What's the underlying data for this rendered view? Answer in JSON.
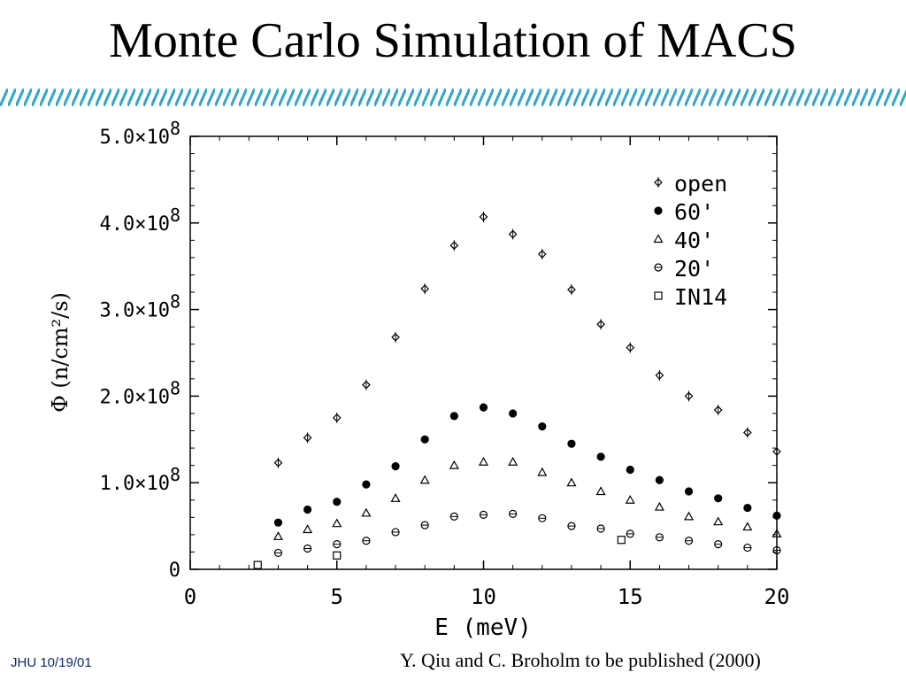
{
  "slide": {
    "title": "Monte Carlo Simulation of MACS",
    "footer_left": "JHU 10/19/01",
    "citation": "Y. Qiu and C. Broholm to be published (2000)"
  },
  "colors": {
    "stripe": "#3aa6c8",
    "footer_text": "#0a2a66"
  },
  "chart_data": {
    "type": "scatter",
    "xlabel": "E (meV)",
    "ylabel": "Φ (n/cm²/s)",
    "xlim": [
      0,
      20
    ],
    "ylim": [
      0,
      500000000
    ],
    "x_ticks": [
      {
        "value": 0,
        "label": "0"
      },
      {
        "value": 5,
        "label": "5"
      },
      {
        "value": 10,
        "label": "10"
      },
      {
        "value": 15,
        "label": "15"
      },
      {
        "value": 20,
        "label": "20"
      }
    ],
    "y_ticks": [
      {
        "value": 0,
        "mant": "0",
        "exp": ""
      },
      {
        "value": 100000000,
        "mant": "1.0×10",
        "exp": "8"
      },
      {
        "value": 200000000,
        "mant": "2.0×10",
        "exp": "8"
      },
      {
        "value": 300000000,
        "mant": "3.0×10",
        "exp": "8"
      },
      {
        "value": 400000000,
        "mant": "4.0×10",
        "exp": "8"
      },
      {
        "value": 500000000,
        "mant": "5.0×10",
        "exp": "8"
      }
    ],
    "legend_position": "top-right",
    "series": [
      {
        "name": "open",
        "marker": "diamond",
        "x": [
          3,
          4,
          5,
          6,
          7,
          8,
          9,
          10,
          11,
          12,
          13,
          14,
          15,
          16,
          17,
          18,
          19,
          20
        ],
        "y": [
          123000000,
          152000000,
          175000000,
          213000000,
          268000000,
          324000000,
          374000000,
          407000000,
          387000000,
          364000000,
          323000000,
          283000000,
          256000000,
          224000000,
          200000000,
          184000000,
          158000000,
          136000000
        ]
      },
      {
        "name": "60'",
        "marker": "filled-circle",
        "x": [
          3,
          4,
          5,
          6,
          7,
          8,
          9,
          10,
          11,
          12,
          13,
          14,
          15,
          16,
          17,
          18,
          19,
          20
        ],
        "y": [
          54000000,
          69000000,
          78000000,
          98000000,
          119000000,
          150000000,
          177000000,
          187000000,
          180000000,
          165000000,
          145000000,
          130000000,
          115000000,
          103000000,
          90000000,
          82000000,
          71000000,
          62000000
        ]
      },
      {
        "name": "40'",
        "marker": "triangle",
        "x": [
          3,
          4,
          5,
          6,
          7,
          8,
          9,
          10,
          11,
          12,
          13,
          14,
          15,
          16,
          17,
          18,
          19,
          20
        ],
        "y": [
          38000000,
          46000000,
          53000000,
          65000000,
          82000000,
          103000000,
          120000000,
          124000000,
          124000000,
          112000000,
          100000000,
          90000000,
          80000000,
          72000000,
          61000000,
          55000000,
          49000000,
          41000000
        ]
      },
      {
        "name": "20'",
        "marker": "open-circle",
        "x": [
          3,
          4,
          5,
          6,
          7,
          8,
          9,
          10,
          11,
          12,
          13,
          14,
          15,
          16,
          17,
          18,
          19,
          20
        ],
        "y": [
          19000000,
          24000000,
          29000000,
          33000000,
          43000000,
          51000000,
          61000000,
          63000000,
          64000000,
          59000000,
          50000000,
          47000000,
          41000000,
          37000000,
          33000000,
          29000000,
          25000000,
          22000000
        ]
      },
      {
        "name": "IN14",
        "marker": "square",
        "x": [
          2.3,
          5,
          14.7
        ],
        "y": [
          5000000,
          16000000,
          34000000
        ]
      }
    ]
  }
}
